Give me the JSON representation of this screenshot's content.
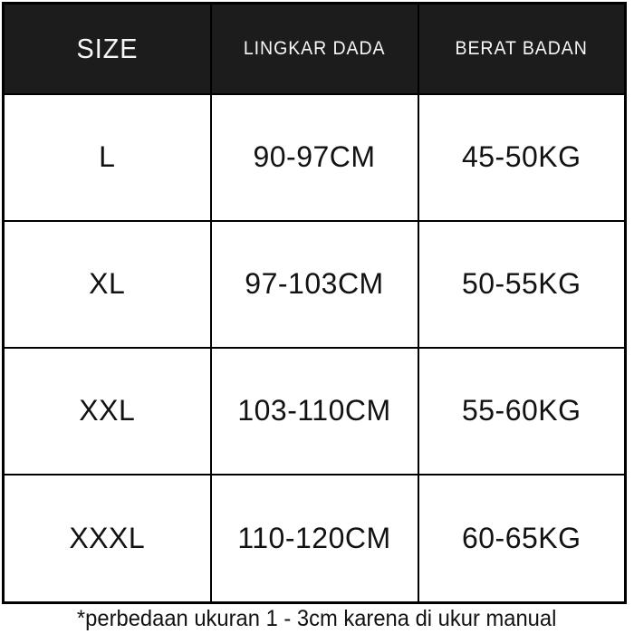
{
  "chart_data": {
    "type": "table",
    "title": "",
    "columns": [
      "SIZE",
      "LINGKAR DADA",
      "BERAT BADAN"
    ],
    "rows": [
      [
        "L",
        "90-97CM",
        "45-50KG"
      ],
      [
        "XL",
        "97-103CM",
        "50-55KG"
      ],
      [
        "XXL",
        "103-110CM",
        "55-60KG"
      ],
      [
        "XXXL",
        "110-120CM",
        "60-65KG"
      ]
    ]
  },
  "footnote": "*perbedaan ukuran 1 - 3cm karena di ukur manual",
  "colors": {
    "header_bg": "#1c1c1c",
    "header_text": "#f7f7f7",
    "border": "#000000",
    "cell_bg": "#ffffff",
    "cell_text": "#121212",
    "page_bg": "#ffffff"
  }
}
